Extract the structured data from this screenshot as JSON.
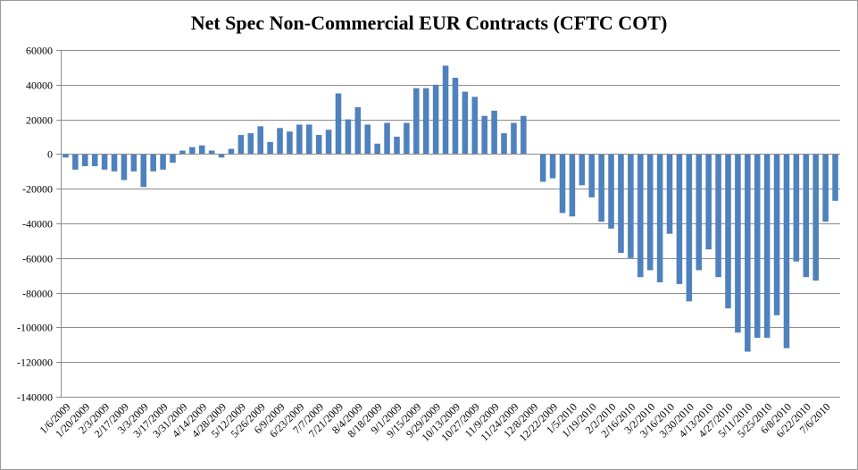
{
  "chart_data": {
    "type": "bar",
    "title": "Net Spec Non-Commercial EUR Contracts (CFTC COT)",
    "xlabel": "",
    "ylabel": "",
    "ylim": [
      -140000,
      60000
    ],
    "yticks": [
      60000,
      40000,
      20000,
      0,
      -20000,
      -40000,
      -60000,
      -80000,
      -100000,
      -120000,
      -140000
    ],
    "grid": true,
    "legend": "none",
    "bar_color": "#4f81bd",
    "gridline_color": "#8c8c8c",
    "x_tick_labels": [
      "1/6/2009",
      "1/20/2009",
      "2/3/2009",
      "2/17/2009",
      "3/3/2009",
      "3/17/2009",
      "3/31/2009",
      "4/14/2009",
      "4/28/2009",
      "5/12/2009",
      "5/26/2009",
      "6/9/2009",
      "6/23/2009",
      "7/7/2009",
      "7/21/2009",
      "8/4/2009",
      "8/18/2009",
      "9/1/2009",
      "9/15/2009",
      "9/29/2009",
      "10/13/2009",
      "10/27/2009",
      "11/9/2009",
      "11/24/2009",
      "12/8/2009",
      "12/22/2009",
      "1/5/2010",
      "1/19/2010",
      "2/2/2010",
      "2/16/2010",
      "3/2/2010",
      "3/16/2010",
      "3/30/2010",
      "4/13/2010",
      "4/27/2010",
      "5/11/2010",
      "5/25/2010",
      "6/8/2010",
      "6/22/2010",
      "7/6/2010"
    ],
    "values": [
      -2000,
      -9000,
      -7000,
      -7000,
      -9000,
      -10000,
      -15000,
      -10000,
      -19000,
      -10000,
      -9000,
      -5000,
      2000,
      4000,
      5000,
      2000,
      -2000,
      3000,
      11000,
      12000,
      16000,
      7000,
      15000,
      13000,
      17000,
      17000,
      11000,
      14000,
      35000,
      20000,
      27000,
      17000,
      6000,
      18000,
      10000,
      18000,
      38000,
      38000,
      40000,
      51000,
      44000,
      36000,
      33000,
      22000,
      25000,
      12000,
      18000,
      22000,
      0,
      -16000,
      -14000,
      -34000,
      -36000,
      -18000,
      -25000,
      -39000,
      -43000,
      -57000,
      -60000,
      -71000,
      -67000,
      -74000,
      -46000,
      -75000,
      -85000,
      -67000,
      -55000,
      -71000,
      -89000,
      -103000,
      -114000,
      -106000,
      -106000,
      -93000,
      -112000,
      -62000,
      -71000,
      -73000,
      -39000,
      -27000
    ]
  }
}
